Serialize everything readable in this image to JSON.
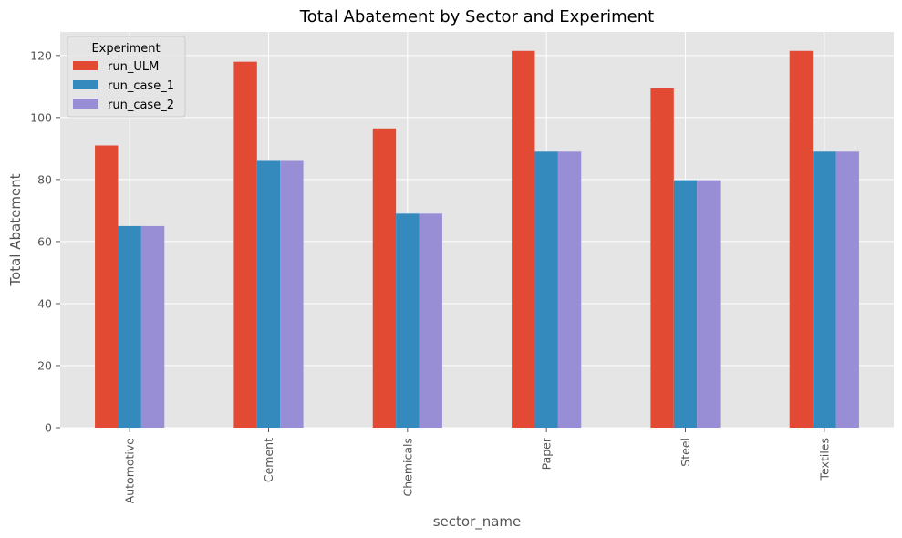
{
  "chart_data": {
    "type": "bar",
    "title": "Total Abatement by Sector and Experiment",
    "xlabel": "sector_name",
    "ylabel": "Total Abatement",
    "categories": [
      "Automotive",
      "Cement",
      "Chemicals",
      "Paper",
      "Steel",
      "Textiles"
    ],
    "series": [
      {
        "name": "run_ULM",
        "color": "#E24A33",
        "values": [
          91,
          118,
          96.5,
          121.5,
          109.5,
          121.5
        ]
      },
      {
        "name": "run_case_1",
        "color": "#348ABD",
        "values": [
          65,
          86,
          69,
          89,
          79.8,
          89
        ]
      },
      {
        "name": "run_case_2",
        "color": "#988ED5",
        "values": [
          65,
          86,
          69,
          89,
          79.8,
          89
        ]
      }
    ],
    "ylim": [
      0,
      127.6
    ],
    "yticks": [
      0,
      20,
      40,
      60,
      80,
      100,
      120
    ],
    "grid": true,
    "legend": {
      "title": "Experiment",
      "placement": "top-left"
    },
    "background": "#E5E5E5"
  }
}
